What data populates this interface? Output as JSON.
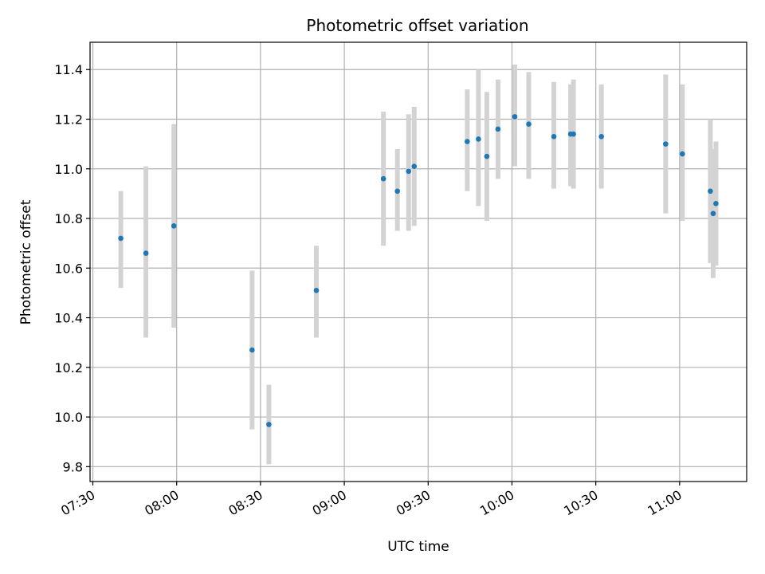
{
  "chart_data": {
    "type": "scatter",
    "title": "Photometric offset variation",
    "xlabel": "UTC time",
    "ylabel": "Photometric offset",
    "xlim": [
      "07:29",
      "11:24"
    ],
    "ylim": [
      9.74,
      11.51
    ],
    "x_ticks": [
      "07:30",
      "08:00",
      "08:30",
      "09:00",
      "09:30",
      "10:00",
      "10:30",
      "11:00"
    ],
    "y_ticks": [
      "9.8",
      "10.0",
      "10.2",
      "10.4",
      "10.6",
      "10.8",
      "11.0",
      "11.2",
      "11.4"
    ],
    "grid": true,
    "point_color": "#1f77b4",
    "errorbar_color": "#d3d3d3",
    "points": [
      {
        "x": "07:40",
        "y": 10.72,
        "lo": 10.52,
        "hi": 10.91
      },
      {
        "x": "07:49",
        "y": 10.66,
        "lo": 10.32,
        "hi": 11.01
      },
      {
        "x": "07:59",
        "y": 10.77,
        "lo": 10.36,
        "hi": 11.18
      },
      {
        "x": "08:27",
        "y": 10.27,
        "lo": 9.95,
        "hi": 10.59
      },
      {
        "x": "08:33",
        "y": 9.97,
        "lo": 9.81,
        "hi": 10.13
      },
      {
        "x": "08:50",
        "y": 10.51,
        "lo": 10.32,
        "hi": 10.69
      },
      {
        "x": "09:14",
        "y": 10.96,
        "lo": 10.69,
        "hi": 11.23
      },
      {
        "x": "09:19",
        "y": 10.91,
        "lo": 10.75,
        "hi": 11.08
      },
      {
        "x": "09:23",
        "y": 10.99,
        "lo": 10.75,
        "hi": 11.22
      },
      {
        "x": "09:25",
        "y": 11.01,
        "lo": 10.77,
        "hi": 11.25
      },
      {
        "x": "09:44",
        "y": 11.11,
        "lo": 10.91,
        "hi": 11.32
      },
      {
        "x": "09:48",
        "y": 11.12,
        "lo": 10.85,
        "hi": 11.4
      },
      {
        "x": "09:51",
        "y": 11.05,
        "lo": 10.79,
        "hi": 11.31
      },
      {
        "x": "09:55",
        "y": 11.16,
        "lo": 10.96,
        "hi": 11.36
      },
      {
        "x": "10:01",
        "y": 11.21,
        "lo": 11.01,
        "hi": 11.42
      },
      {
        "x": "10:06",
        "y": 11.18,
        "lo": 10.96,
        "hi": 11.39
      },
      {
        "x": "10:15",
        "y": 11.13,
        "lo": 10.92,
        "hi": 11.35
      },
      {
        "x": "10:21",
        "y": 11.14,
        "lo": 10.93,
        "hi": 11.34
      },
      {
        "x": "10:22",
        "y": 11.14,
        "lo": 10.92,
        "hi": 11.36
      },
      {
        "x": "10:32",
        "y": 11.13,
        "lo": 10.92,
        "hi": 11.34
      },
      {
        "x": "10:55",
        "y": 11.1,
        "lo": 10.82,
        "hi": 11.38
      },
      {
        "x": "11:01",
        "y": 11.06,
        "lo": 10.79,
        "hi": 11.34
      },
      {
        "x": "11:11",
        "y": 10.91,
        "lo": 10.62,
        "hi": 11.2
      },
      {
        "x": "11:12",
        "y": 10.82,
        "lo": 10.56,
        "hi": 11.08
      },
      {
        "x": "11:13",
        "y": 10.86,
        "lo": 10.61,
        "hi": 11.11
      }
    ]
  }
}
